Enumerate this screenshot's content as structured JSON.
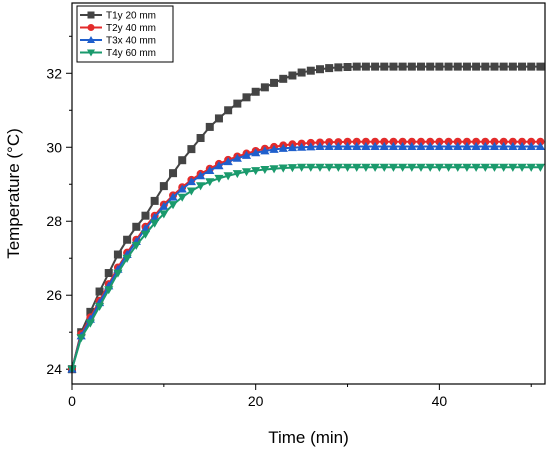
{
  "chart_data": {
    "type": "line",
    "xlabel": "Time (min)",
    "ylabel": "Temperature (°C)",
    "xlim": [
      0,
      51.5
    ],
    "ylim": [
      23.6,
      33.9
    ],
    "x_ticks": [
      0,
      20,
      40
    ],
    "y_ticks": [
      24,
      26,
      28,
      30,
      32
    ],
    "legend_position": "top-left",
    "x": [
      0,
      1,
      2,
      3,
      4,
      5,
      6,
      7,
      8,
      9,
      10,
      11,
      12,
      13,
      14,
      15,
      16,
      17,
      18,
      19,
      20,
      21,
      22,
      23,
      24,
      25,
      26,
      27,
      28,
      29,
      30,
      31,
      32,
      33,
      34,
      35,
      36,
      37,
      38,
      39,
      40,
      41,
      42,
      43,
      44,
      45,
      46,
      47,
      48,
      49,
      50,
      51
    ],
    "series": [
      {
        "name": "T1y 20 mm",
        "color": "#444444",
        "marker": "square",
        "values": [
          24.0,
          25.0,
          25.55,
          26.1,
          26.6,
          27.1,
          27.5,
          27.85,
          28.15,
          28.55,
          28.95,
          29.3,
          29.65,
          29.95,
          30.25,
          30.55,
          30.78,
          31.0,
          31.18,
          31.35,
          31.5,
          31.62,
          31.74,
          31.85,
          31.94,
          32.02,
          32.07,
          32.11,
          32.14,
          32.16,
          32.17,
          32.18,
          32.18,
          32.18,
          32.18,
          32.18,
          32.18,
          32.18,
          32.18,
          32.18,
          32.18,
          32.18,
          32.18,
          32.18,
          32.18,
          32.18,
          32.18,
          32.18,
          32.18,
          32.18,
          32.18,
          32.18
        ]
      },
      {
        "name": "T2y 40 mm",
        "color": "#e32b2b",
        "marker": "circle",
        "values": [
          24.0,
          24.95,
          25.4,
          25.85,
          26.3,
          26.75,
          27.15,
          27.5,
          27.85,
          28.15,
          28.45,
          28.7,
          28.92,
          29.12,
          29.28,
          29.42,
          29.55,
          29.66,
          29.75,
          29.83,
          29.9,
          29.96,
          30.01,
          30.05,
          30.08,
          30.1,
          30.12,
          30.13,
          30.14,
          30.14,
          30.15,
          30.15,
          30.15,
          30.15,
          30.15,
          30.15,
          30.15,
          30.15,
          30.15,
          30.15,
          30.15,
          30.15,
          30.15,
          30.15,
          30.15,
          30.15,
          30.15,
          30.15,
          30.15,
          30.15,
          30.15,
          30.15
        ]
      },
      {
        "name": "T3x 40 mm",
        "color": "#1f5fcc",
        "marker": "triangle-up",
        "values": [
          24.0,
          24.9,
          25.35,
          25.8,
          26.25,
          26.7,
          27.1,
          27.45,
          27.8,
          28.1,
          28.4,
          28.65,
          28.87,
          29.07,
          29.23,
          29.37,
          29.5,
          29.61,
          29.7,
          29.78,
          29.85,
          29.9,
          29.94,
          29.97,
          29.99,
          30.0,
          30.01,
          30.02,
          30.02,
          30.02,
          30.02,
          30.02,
          30.02,
          30.02,
          30.02,
          30.02,
          30.02,
          30.02,
          30.02,
          30.02,
          30.02,
          30.02,
          30.02,
          30.02,
          30.02,
          30.02,
          30.02,
          30.02,
          30.02,
          30.02,
          30.02,
          30.02
        ]
      },
      {
        "name": "T4y 60 mm",
        "color": "#1a9a6c",
        "marker": "triangle-down",
        "values": [
          24.0,
          24.85,
          25.25,
          25.7,
          26.15,
          26.6,
          27.0,
          27.35,
          27.65,
          27.95,
          28.2,
          28.45,
          28.65,
          28.82,
          28.96,
          29.07,
          29.16,
          29.23,
          29.29,
          29.34,
          29.37,
          29.4,
          29.42,
          29.44,
          29.45,
          29.46,
          29.46,
          29.46,
          29.46,
          29.46,
          29.46,
          29.46,
          29.46,
          29.46,
          29.46,
          29.46,
          29.46,
          29.46,
          29.46,
          29.46,
          29.46,
          29.46,
          29.46,
          29.46,
          29.46,
          29.46,
          29.46,
          29.46,
          29.46,
          29.46,
          29.46,
          29.46
        ]
      }
    ]
  }
}
